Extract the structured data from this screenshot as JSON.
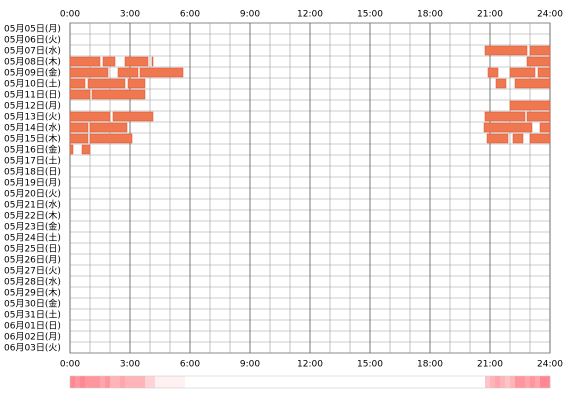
{
  "chart_data": {
    "type": "timeline",
    "categories": [
      "05月05日(月)",
      "05月06日(火)",
      "05月07日(水)",
      "05月08日(木)",
      "05月09日(金)",
      "05月10日(土)",
      "05月11日(日)",
      "05月12日(月)",
      "05月13日(火)",
      "05月14日(水)",
      "05月15日(木)",
      "05月16日(金)",
      "05月17日(土)",
      "05月18日(日)",
      "05月19日(月)",
      "05月20日(火)",
      "05月21日(水)",
      "05月22日(木)",
      "05月23日(金)",
      "05月24日(土)",
      "05月25日(日)",
      "05月26日(月)",
      "05月27日(火)",
      "05月28日(水)",
      "05月29日(木)",
      "05月30日(金)",
      "05月31日(土)",
      "06月01日(日)",
      "06月02日(月)",
      "06月03日(火)"
    ],
    "segments": [
      [],
      [],
      [
        [
          20.75,
          22.85
        ],
        [
          23,
          24
        ]
      ],
      [
        [
          0,
          1.5
        ],
        [
          1.65,
          2.25
        ],
        [
          2.75,
          3.9
        ],
        [
          4.1,
          4.15
        ],
        [
          22.85,
          24
        ]
      ],
      [
        [
          0,
          1.9
        ],
        [
          2.4,
          3.4
        ],
        [
          3.5,
          5.65
        ],
        [
          20.9,
          21.4
        ],
        [
          22,
          23.25
        ],
        [
          23.4,
          24
        ]
      ],
      [
        [
          0,
          0.75
        ],
        [
          0.9,
          2.75
        ],
        [
          2.9,
          3.75
        ],
        [
          21.3,
          21.8
        ],
        [
          22.25,
          24
        ]
      ],
      [
        [
          0,
          1
        ],
        [
          1.1,
          3.75
        ]
      ],
      [
        [
          22,
          24
        ]
      ],
      [
        [
          0,
          2
        ],
        [
          2.15,
          4.15
        ],
        [
          20.75,
          22.75
        ],
        [
          22.85,
          24
        ]
      ],
      [
        [
          0,
          0.9
        ],
        [
          1,
          2.85
        ],
        [
          20.7,
          23.1
        ],
        [
          23.5,
          24
        ]
      ],
      [
        [
          0,
          0.9
        ],
        [
          1,
          3.1
        ],
        [
          20.85,
          21.9
        ],
        [
          22.15,
          22.65
        ],
        [
          23,
          24
        ]
      ],
      [
        [
          0,
          0.15
        ],
        [
          0.6,
          1
        ]
      ],
      [],
      [],
      [],
      [],
      [],
      [],
      [],
      [],
      [],
      [],
      [],
      [],
      [],
      [],
      [],
      [],
      [],
      []
    ],
    "color": "#f07850",
    "xlim": [
      0,
      24
    ],
    "xticks": [
      {
        "value": 0,
        "label": "0:00"
      },
      {
        "value": 3,
        "label": "3:00"
      },
      {
        "value": 6,
        "label": "6:00"
      },
      {
        "value": 9,
        "label": "9:00"
      },
      {
        "value": 12,
        "label": "12:00"
      },
      {
        "value": 15,
        "label": "15:00"
      },
      {
        "value": 18,
        "label": "18:00"
      },
      {
        "value": 21,
        "label": "21:00"
      },
      {
        "value": 24,
        "label": "24:00"
      }
    ]
  }
}
